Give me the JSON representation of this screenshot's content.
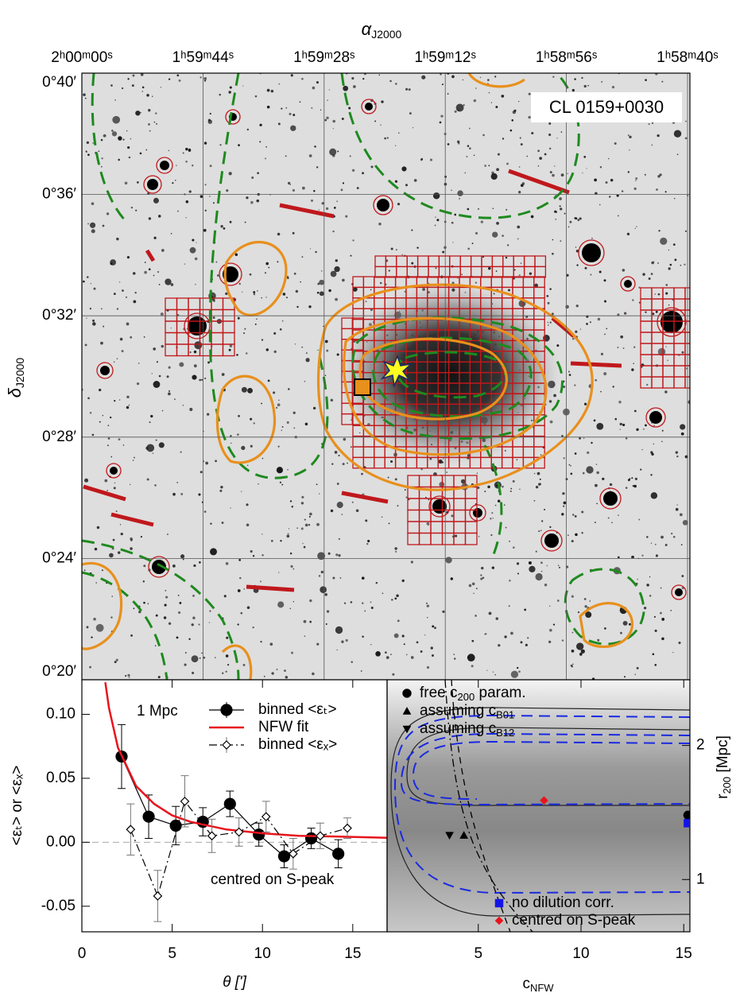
{
  "chart_data": [
    {
      "type": "image",
      "title": "CL 0159+0030",
      "xlabel": {
        "symbol": "α",
        "subscript": "J2000"
      },
      "ylabel": {
        "symbol": "δ",
        "subscript": "J2000"
      },
      "xticks": [
        "2ʰ00ᵐ00ˢ",
        "1ʰ59ᵐ44ˢ",
        "1ʰ59ᵐ28ˢ",
        "1ʰ59ᵐ12ˢ",
        "1ʰ58ᵐ56ˢ",
        "1ʰ58ᵐ40ˢ"
      ],
      "yticks": [
        "0°40′",
        "0°36′",
        "0°32′",
        "0°28′",
        "0°24′",
        "0°20′"
      ]
    },
    {
      "type": "scatter",
      "xlabel": "θ [']",
      "ylabel": "<εₜ> or <εₓ>",
      "annotations": [
        "1 Mpc",
        "centred on S-peak"
      ],
      "xlim": [
        0,
        16.9
      ],
      "ylim": [
        -0.07,
        0.127
      ],
      "xticks": [
        0,
        5,
        10,
        15
      ],
      "yticks": [
        {
          "value": 0.1,
          "label": "0.10"
        },
        0.05,
        {
          "value": 0,
          "label": "0.00"
        },
        -0.05
      ],
      "zero_line": true,
      "series": [
        {
          "name": "binned <εₜ>",
          "color": "#000000",
          "marker": "circle",
          "line": "solid",
          "x": [
            2.2,
            3.7,
            5.2,
            6.7,
            8.2,
            9.8,
            11.2,
            12.7,
            14.2
          ],
          "values": [
            0.067,
            0.02,
            0.013,
            0.016,
            0.03,
            0.006,
            -0.011,
            0.003,
            -0.009
          ],
          "errors": [
            0.025,
            0.017,
            0.015,
            0.011,
            0.01,
            0.009,
            0.009,
            0.008,
            0.011
          ]
        },
        {
          "name": "NFW fit",
          "color": "#e8141c",
          "marker": "none",
          "line": "solid",
          "x": [
            1.3,
            1.5,
            2,
            3,
            4,
            5,
            6,
            8,
            10,
            12,
            14,
            16.9
          ],
          "values": [
            0.125,
            0.105,
            0.074,
            0.044,
            0.03,
            0.021,
            0.016,
            0.01,
            0.007,
            0.005,
            0.0045,
            0.0035
          ]
        },
        {
          "name": "binned <εₓ>",
          "color": "#000000",
          "marker": "diamond",
          "line": "dashdot",
          "x": [
            2.7,
            4.2,
            5.7,
            7.2,
            8.7,
            10.2,
            11.7,
            13.2,
            14.7
          ],
          "values": [
            0.01,
            -0.042,
            0.032,
            0.005,
            0.008,
            0.02,
            -0.009,
            0.005,
            0.011
          ],
          "errors": [
            0.02,
            0.02,
            0.02,
            0.013,
            0.011,
            0.012,
            0.012,
            0.01,
            0.008
          ]
        }
      ]
    },
    {
      "type": "scatter",
      "xlabel": {
        "text": "c",
        "subscript": "NFW"
      },
      "ylabel": {
        "text": "r",
        "subscript": "200",
        "suffix": " [Mpc]"
      },
      "xlim": [
        0.56,
        15.3
      ],
      "ylim": [
        0.61,
        2.49
      ],
      "xticks": [
        5,
        10,
        15
      ],
      "yticks": [
        1,
        2
      ],
      "series": [
        {
          "name": "free c",
          "subscript": "200",
          "suffix": " param.",
          "color": "#000000",
          "marker": "circle",
          "x": [
            15.2
          ],
          "values": [
            1.48
          ]
        },
        {
          "name": "assuming c",
          "subscript": "B01",
          "color": "#000000",
          "marker": "triangle-up",
          "x": [
            4.3
          ],
          "values": [
            1.33
          ]
        },
        {
          "name": "assuming c",
          "subscript": "B12",
          "color": "#000000",
          "marker": "triangle-down",
          "x": [
            3.6
          ],
          "values": [
            1.33
          ]
        },
        {
          "name": "no dilution corr.",
          "color": "#1414e6",
          "marker": "square",
          "x": [
            15.2
          ],
          "values": [
            1.42
          ]
        },
        {
          "name": "centred on S-peak",
          "color": "#e8141c",
          "marker": "diamond",
          "x": [
            8.2
          ],
          "values": [
            1.59
          ]
        }
      ]
    }
  ]
}
